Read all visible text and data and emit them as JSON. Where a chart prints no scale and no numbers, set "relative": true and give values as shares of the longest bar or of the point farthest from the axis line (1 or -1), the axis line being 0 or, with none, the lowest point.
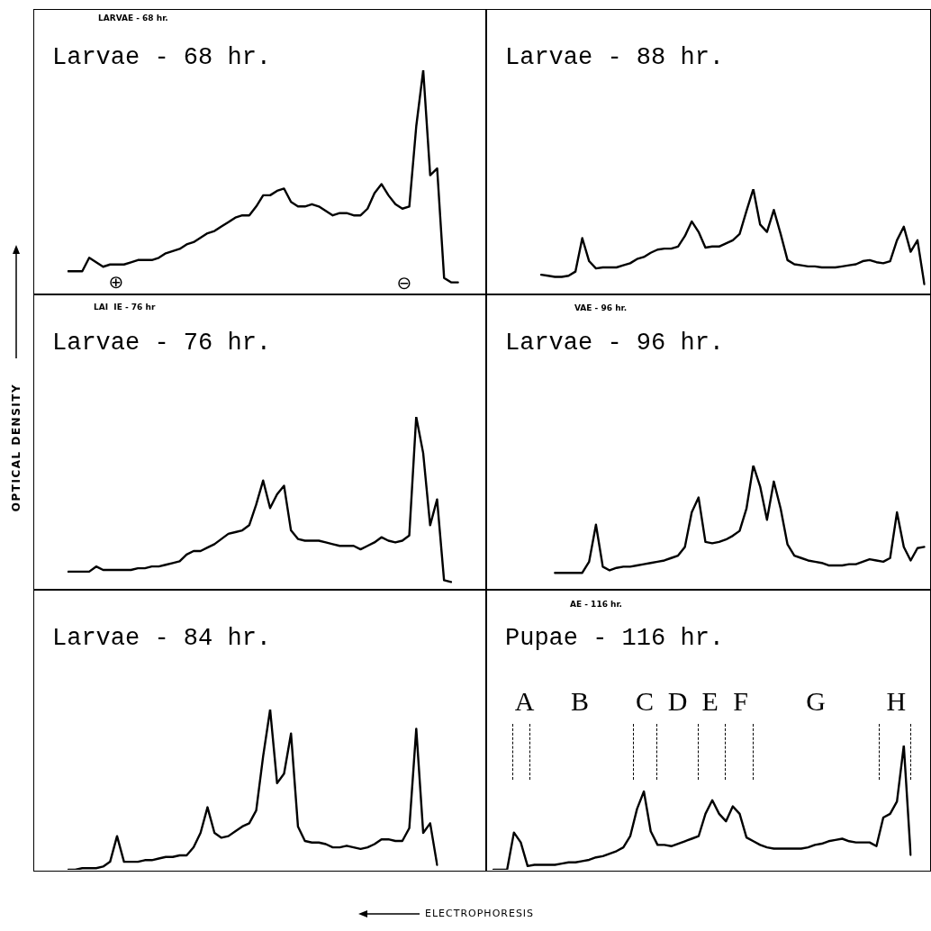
{
  "chart_data": [
    {
      "type": "line",
      "title": "Larvae - 68 hr.",
      "relative": true,
      "marker": "none",
      "annotations": [
        "LARVAE - 68 hr.",
        "⊕",
        "⊖"
      ],
      "categories": [
        null,
        null,
        null,
        null,
        null,
        null,
        null,
        null,
        null,
        null,
        null,
        null,
        null,
        null,
        null,
        null,
        null,
        null,
        null,
        null,
        null,
        null,
        null,
        null,
        null,
        null,
        null,
        null,
        null,
        null,
        null,
        null,
        null,
        null,
        null,
        null,
        null,
        null,
        null,
        null,
        null,
        null,
        null,
        null,
        null,
        null,
        null,
        null,
        null,
        null,
        null,
        null,
        null,
        null,
        null,
        null,
        null
      ],
      "series": [
        {
          "color": "#000000",
          "values": [
            0.1,
            0.1,
            0.1,
            0.16,
            0.14,
            0.12,
            0.13,
            0.13,
            0.13,
            0.14,
            0.15,
            0.15,
            0.15,
            0.16,
            0.18,
            0.19,
            0.2,
            0.22,
            0.23,
            0.25,
            0.27,
            0.28,
            0.3,
            0.32,
            0.34,
            0.35,
            0.35,
            0.39,
            0.44,
            0.44,
            0.46,
            0.47,
            0.41,
            0.39,
            0.39,
            0.4,
            0.39,
            0.37,
            0.35,
            0.36,
            0.36,
            0.35,
            0.35,
            0.38,
            0.45,
            0.49,
            0.44,
            0.4,
            0.38,
            0.39,
            0.75,
            1,
            0.53,
            0.56,
            0.07,
            0.05,
            0.05
          ]
        }
      ]
    },
    {
      "type": "line",
      "title": "Larvae - 88 hr.",
      "relative": true,
      "marker": "none",
      "categories": [
        null,
        null,
        null,
        null,
        null,
        null,
        null,
        null,
        null,
        null,
        null,
        null,
        null,
        null,
        null,
        null,
        null,
        null,
        null,
        null,
        null,
        null,
        null,
        null,
        null,
        null,
        null,
        null,
        null,
        null,
        null,
        null,
        null,
        null,
        null,
        null,
        null,
        null,
        null,
        null,
        null,
        null,
        null,
        null,
        null,
        null,
        null,
        null,
        null,
        null,
        null,
        null,
        null,
        null,
        null,
        null,
        null
      ],
      "series": [
        {
          "color": "#000000",
          "values": [
            0.18,
            0.17,
            0.16,
            0.16,
            0.17,
            0.21,
            0.53,
            0.31,
            0.24,
            0.25,
            0.25,
            0.25,
            0.27,
            0.29,
            0.33,
            0.35,
            0.39,
            0.42,
            0.43,
            0.43,
            0.45,
            0.55,
            0.69,
            0.59,
            0.44,
            0.45,
            0.45,
            0.48,
            0.51,
            0.57,
            0.79,
            1,
            0.66,
            0.59,
            0.8,
            0.57,
            0.32,
            0.28,
            0.27,
            0.26,
            0.26,
            0.25,
            0.25,
            0.25,
            0.26,
            0.27,
            0.28,
            0.31,
            0.32,
            0.3,
            0.29,
            0.31,
            0.51,
            0.64,
            0.4,
            0.51,
            0.09
          ]
        }
      ]
    },
    {
      "type": "line",
      "title": "Larvae - 76 hr.",
      "relative": true,
      "marker": "none",
      "ylabel": "OPTICAL DENSITY",
      "annotations": [
        "LAI  IE - 76 hr"
      ],
      "categories": [
        null,
        null,
        null,
        null,
        null,
        null,
        null,
        null,
        null,
        null,
        null,
        null,
        null,
        null,
        null,
        null,
        null,
        null,
        null,
        null,
        null,
        null,
        null,
        null,
        null,
        null,
        null,
        null,
        null,
        null,
        null,
        null,
        null,
        null,
        null,
        null,
        null,
        null,
        null,
        null,
        null,
        null,
        null,
        null,
        null,
        null,
        null,
        null,
        null,
        null,
        null,
        null,
        null,
        null,
        null,
        null
      ],
      "series": [
        {
          "color": "#000000",
          "values": [
            0.1,
            0.1,
            0.1,
            0.1,
            0.13,
            0.11,
            0.11,
            0.11,
            0.11,
            0.11,
            0.12,
            0.12,
            0.13,
            0.13,
            0.14,
            0.15,
            0.16,
            0.2,
            0.22,
            0.22,
            0.24,
            0.26,
            0.29,
            0.32,
            0.33,
            0.34,
            0.37,
            0.49,
            0.63,
            0.47,
            0.55,
            0.6,
            0.34,
            0.29,
            0.28,
            0.28,
            0.28,
            0.27,
            0.26,
            0.25,
            0.25,
            0.25,
            0.23,
            0.25,
            0.27,
            0.3,
            0.28,
            0.27,
            0.28,
            0.31,
            1,
            0.79,
            0.37,
            0.52,
            0.05,
            0.04
          ]
        }
      ]
    },
    {
      "type": "line",
      "title": "Larvae - 96 hr.",
      "relative": true,
      "marker": "none",
      "annotations": [
        "VAE - 96 hr."
      ],
      "categories": [
        null,
        null,
        null,
        null,
        null,
        null,
        null,
        null,
        null,
        null,
        null,
        null,
        null,
        null,
        null,
        null,
        null,
        null,
        null,
        null,
        null,
        null,
        null,
        null,
        null,
        null,
        null,
        null,
        null,
        null,
        null,
        null,
        null,
        null,
        null,
        null,
        null,
        null,
        null,
        null,
        null,
        null,
        null,
        null,
        null,
        null,
        null,
        null,
        null,
        null,
        null,
        null,
        null,
        null,
        null
      ],
      "series": [
        {
          "color": "#000000",
          "values": [
            0.13,
            0.13,
            0.13,
            0.13,
            0.13,
            0.22,
            0.52,
            0.18,
            0.15,
            0.17,
            0.18,
            0.18,
            0.19,
            0.2,
            0.21,
            0.22,
            0.23,
            0.25,
            0.27,
            0.34,
            0.62,
            0.74,
            0.38,
            0.37,
            0.38,
            0.4,
            0.43,
            0.47,
            0.65,
            1,
            0.83,
            0.56,
            0.87,
            0.65,
            0.36,
            0.27,
            0.25,
            0.23,
            0.22,
            0.21,
            0.19,
            0.19,
            0.19,
            0.2,
            0.2,
            0.22,
            0.24,
            0.23,
            0.22,
            0.25,
            0.62,
            0.34,
            0.23,
            0.33,
            0.34
          ]
        }
      ]
    },
    {
      "type": "line",
      "title": "Larvae - 84 hr.",
      "relative": true,
      "marker": "none",
      "xlabel": "ELECTROPHORESIS",
      "categories": [
        null,
        null,
        null,
        null,
        null,
        null,
        null,
        null,
        null,
        null,
        null,
        null,
        null,
        null,
        null,
        null,
        null,
        null,
        null,
        null,
        null,
        null,
        null,
        null,
        null,
        null,
        null,
        null,
        null,
        null,
        null,
        null,
        null,
        null,
        null,
        null,
        null,
        null,
        null,
        null,
        null,
        null,
        null,
        null,
        null,
        null,
        null,
        null,
        null,
        null,
        null,
        null,
        null,
        null
      ],
      "series": [
        {
          "color": "#000000",
          "values": [
            0,
            0,
            0.01,
            0.01,
            0.01,
            0.02,
            0.05,
            0.21,
            0.05,
            0.05,
            0.05,
            0.06,
            0.06,
            0.07,
            0.08,
            0.08,
            0.09,
            0.09,
            0.14,
            0.23,
            0.39,
            0.23,
            0.2,
            0.21,
            0.24,
            0.27,
            0.29,
            0.37,
            0.71,
            1,
            0.54,
            0.6,
            0.85,
            0.27,
            0.18,
            0.17,
            0.17,
            0.16,
            0.14,
            0.14,
            0.15,
            0.14,
            0.13,
            0.14,
            0.16,
            0.19,
            0.19,
            0.18,
            0.18,
            0.26,
            0.88,
            0.23,
            0.29,
            0.03
          ]
        }
      ]
    },
    {
      "type": "line",
      "title": "Pupae - 116 hr.",
      "relative": true,
      "marker": "none",
      "annotations": [
        "AE - 116 hr.",
        "A",
        "B",
        "C",
        "D",
        "E",
        "F",
        "G",
        "H"
      ],
      "categories": [
        null,
        null,
        null,
        null,
        null,
        null,
        null,
        null,
        null,
        null,
        null,
        null,
        null,
        null,
        null,
        null,
        null,
        null,
        null,
        null,
        null,
        null,
        null,
        null,
        null,
        null,
        null,
        null,
        null,
        null,
        null,
        null,
        null,
        null,
        null,
        null,
        null,
        null,
        null,
        null,
        null,
        null,
        null,
        null,
        null,
        null,
        null,
        null,
        null,
        null,
        null,
        null,
        null,
        null,
        null,
        null,
        null,
        null,
        null,
        null,
        null,
        null
      ],
      "series": [
        {
          "color": "#000000",
          "values": [
            0,
            0,
            0,
            0.3,
            0.22,
            0.03,
            0.04,
            0.04,
            0.04,
            0.04,
            0.05,
            0.06,
            0.06,
            0.07,
            0.08,
            0.1,
            0.11,
            0.13,
            0.15,
            0.18,
            0.27,
            0.49,
            0.63,
            0.31,
            0.2,
            0.2,
            0.19,
            0.21,
            0.23,
            0.25,
            0.27,
            0.45,
            0.56,
            0.45,
            0.39,
            0.51,
            0.45,
            0.26,
            0.23,
            0.2,
            0.18,
            0.17,
            0.17,
            0.17,
            0.17,
            0.17,
            0.18,
            0.2,
            0.21,
            0.23,
            0.24,
            0.25,
            0.23,
            0.22,
            0.22,
            0.22,
            0.19,
            0.42,
            0.45,
            0.55,
            1,
            0.12
          ]
        }
      ]
    }
  ]
}
